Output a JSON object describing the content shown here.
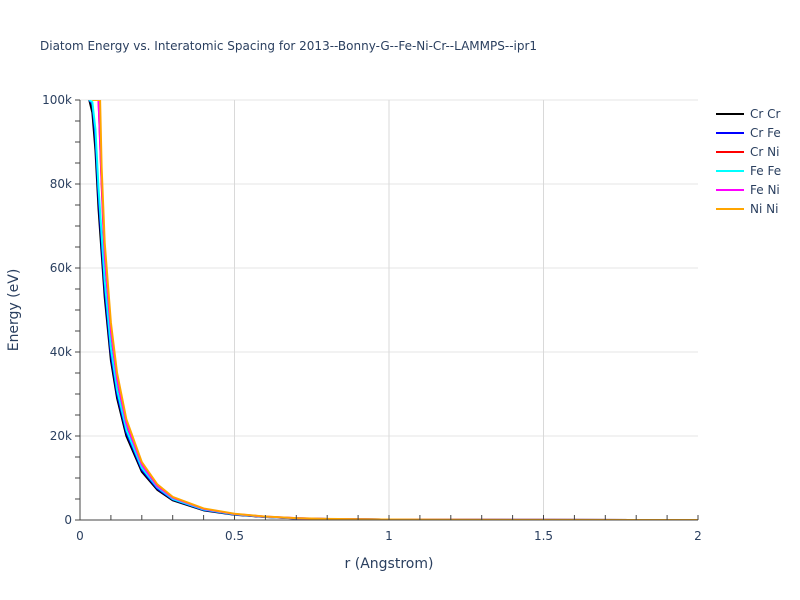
{
  "chart_data": {
    "type": "line",
    "title": "Diatom Energy vs. Interatomic Spacing for 2013--Bonny-G--Fe-Ni-Cr--LAMMPS--ipr1",
    "xlabel": "r (Angstrom)",
    "ylabel": "Energy (eV)",
    "xlim": [
      0,
      2
    ],
    "ylim": [
      0,
      100000
    ],
    "x_ticks": [
      0,
      0.5,
      1,
      1.5,
      2
    ],
    "x_tick_labels": [
      "0",
      "0.5",
      "1",
      "1.5",
      "2"
    ],
    "y_ticks": [
      0,
      20000,
      40000,
      60000,
      80000,
      100000
    ],
    "y_tick_labels": [
      "0",
      "20k",
      "40k",
      "60k",
      "80k",
      "100k"
    ],
    "grid": true,
    "legend_position": "top-right",
    "series": [
      {
        "name": "Cr Cr",
        "color": "#000000",
        "x": [
          0.03,
          0.04,
          0.05,
          0.06,
          0.08,
          0.1,
          0.12,
          0.15,
          0.2,
          0.25,
          0.3,
          0.4,
          0.5,
          0.6,
          0.7,
          0.8,
          1.0,
          1.5,
          2.0
        ],
        "y": [
          100000,
          97000,
          88000,
          74000,
          53000,
          38000,
          29000,
          20000,
          11500,
          7200,
          4700,
          2300,
          1250,
          700,
          380,
          220,
          90,
          20,
          0
        ]
      },
      {
        "name": "Cr Fe",
        "color": "#0000ff",
        "x": [
          0.03,
          0.04,
          0.05,
          0.06,
          0.08,
          0.1,
          0.12,
          0.15,
          0.2,
          0.25,
          0.3,
          0.4,
          0.5,
          0.6,
          0.7,
          0.8,
          1.0,
          1.5,
          2.0
        ],
        "y": [
          100000,
          99000,
          91000,
          77000,
          55000,
          39500,
          30000,
          20800,
          12000,
          7500,
          4900,
          2400,
          1300,
          730,
          400,
          230,
          95,
          20,
          0
        ]
      },
      {
        "name": "Cr Ni",
        "color": "#ff0000",
        "x": [
          0.04,
          0.05,
          0.06,
          0.07,
          0.08,
          0.1,
          0.12,
          0.15,
          0.2,
          0.25,
          0.3,
          0.4,
          0.5,
          0.6,
          0.7,
          0.8,
          1.0,
          1.5,
          2.0
        ],
        "y": [
          100000,
          100000,
          100000,
          80000,
          62000,
          44000,
          33000,
          22500,
          13000,
          8000,
          5200,
          2600,
          1400,
          780,
          430,
          250,
          100,
          22,
          0
        ]
      },
      {
        "name": "Fe Fe",
        "color": "#00ffff",
        "x": [
          0.03,
          0.04,
          0.05,
          0.06,
          0.08,
          0.1,
          0.12,
          0.15,
          0.2,
          0.25,
          0.3,
          0.4,
          0.5,
          0.6,
          0.7,
          0.8,
          1.0,
          1.5,
          2.0
        ],
        "y": [
          100000,
          99500,
          93000,
          79000,
          57000,
          41000,
          31000,
          21500,
          12400,
          7800,
          5000,
          2500,
          1350,
          750,
          410,
          235,
          97,
          21,
          0
        ]
      },
      {
        "name": "Fe Ni",
        "color": "#ff00ff",
        "x": [
          0.04,
          0.05,
          0.06,
          0.07,
          0.08,
          0.1,
          0.12,
          0.15,
          0.2,
          0.25,
          0.3,
          0.4,
          0.5,
          0.6,
          0.7,
          0.8,
          1.0,
          1.5,
          2.0
        ],
        "y": [
          100000,
          100000,
          100000,
          81000,
          63000,
          45000,
          33500,
          23000,
          13200,
          8100,
          5300,
          2650,
          1420,
          790,
          435,
          252,
          102,
          22,
          0
        ]
      },
      {
        "name": "Ni Ni",
        "color": "#ffa500",
        "x": [
          0.04,
          0.05,
          0.06,
          0.065,
          0.07,
          0.08,
          0.1,
          0.12,
          0.15,
          0.2,
          0.25,
          0.3,
          0.4,
          0.5,
          0.6,
          0.7,
          0.8,
          1.0,
          1.5,
          2.0
        ],
        "y": [
          100000,
          100000,
          100000,
          100000,
          84000,
          66000,
          47000,
          35000,
          24000,
          13800,
          8500,
          5500,
          2750,
          1480,
          820,
          450,
          260,
          105,
          23,
          0
        ]
      }
    ]
  }
}
